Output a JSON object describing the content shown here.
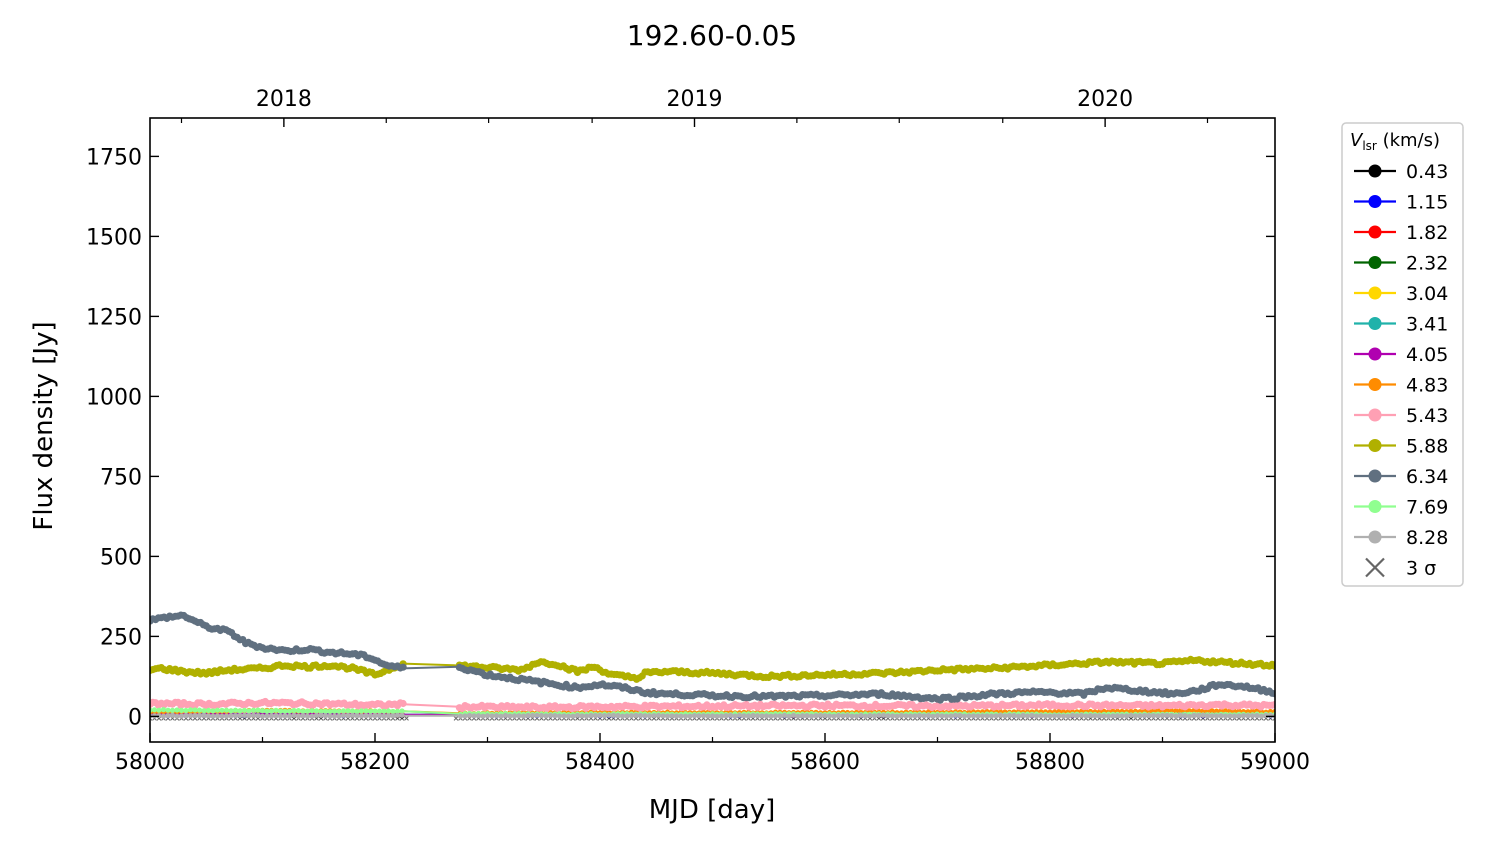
{
  "chart_data": {
    "type": "line",
    "title": "192.60-0.05",
    "xlabel": "MJD [day]",
    "ylabel": "Flux density [Jy]",
    "xlim": [
      58000,
      59000
    ],
    "ylim": [
      -80,
      1870
    ],
    "x_ticks": [
      58000,
      58200,
      58400,
      58600,
      58800,
      59000
    ],
    "y_ticks": [
      0,
      250,
      500,
      750,
      1000,
      1250,
      1500,
      1750
    ],
    "top_axis": {
      "ticks": [
        {
          "label": "2018",
          "mjd": 58119
        },
        {
          "label": "2019",
          "mjd": 58484
        },
        {
          "label": "2020",
          "mjd": 58849
        }
      ]
    },
    "legend": {
      "title_main": "V",
      "title_sub": "lsr",
      "title_rest": " (km/s)",
      "placement": "outside-right-top",
      "sigma_label": "3 σ",
      "sigma_color": "#666666"
    },
    "series": [
      {
        "name": "0.43",
        "color": "#000000",
        "x": [
          58000,
          58225,
          58275,
          59000
        ],
        "y": [
          3,
          3,
          3,
          3
        ]
      },
      {
        "name": "1.15",
        "color": "#0000ff",
        "x": [
          58000,
          58225,
          58275,
          59000
        ],
        "y": [
          4,
          4,
          4,
          4
        ]
      },
      {
        "name": "1.82",
        "color": "#ff0000",
        "x": [
          58000,
          58225,
          58275,
          59000
        ],
        "y": [
          5,
          5,
          5,
          5
        ]
      },
      {
        "name": "2.32",
        "color": "#006400",
        "x": [
          58000,
          58225,
          58275,
          59000
        ],
        "y": [
          6,
          6,
          6,
          6
        ]
      },
      {
        "name": "3.04",
        "color": "#ffd700",
        "x": [
          58000,
          58225,
          58275,
          59000
        ],
        "y": [
          5,
          5,
          5,
          5
        ]
      },
      {
        "name": "3.41",
        "color": "#20b2aa",
        "x": [
          58000,
          58225,
          58275,
          59000
        ],
        "y": [
          6,
          6,
          6,
          6
        ]
      },
      {
        "name": "4.05",
        "color": "#b000b0",
        "x": [
          58000,
          58225,
          58275,
          59000
        ],
        "y": [
          5,
          5,
          5,
          5
        ]
      },
      {
        "name": "4.83",
        "color": "#ff8c00",
        "x": [
          58000,
          58100,
          58225,
          58275,
          58400,
          58600,
          58800,
          58950,
          59000
        ],
        "y": [
          15,
          18,
          16,
          10,
          12,
          12,
          14,
          18,
          14
        ]
      },
      {
        "name": "5.43",
        "color": "#ffa0b4",
        "x": [
          58000,
          58050,
          58100,
          58150,
          58200,
          58225,
          58275,
          58350,
          58400,
          58500,
          58600,
          58700,
          58800,
          58900,
          58950,
          59000
        ],
        "y": [
          40,
          38,
          42,
          40,
          35,
          38,
          30,
          28,
          30,
          32,
          34,
          32,
          35,
          33,
          36,
          33
        ]
      },
      {
        "name": "5.88",
        "color": "#b0b000",
        "x": [
          58000,
          58010,
          58030,
          58050,
          58070,
          58100,
          58120,
          58140,
          58160,
          58180,
          58200,
          58225,
          58270,
          58290,
          58310,
          58330,
          58345,
          58360,
          58380,
          58395,
          58410,
          58420,
          58435,
          58440,
          58460,
          58500,
          58550,
          58600,
          58650,
          58680,
          58700,
          58750,
          58800,
          58850,
          58900,
          58930,
          58950,
          59000
        ],
        "y": [
          145,
          150,
          140,
          135,
          145,
          150,
          160,
          155,
          160,
          150,
          130,
          165,
          160,
          155,
          150,
          145,
          170,
          165,
          140,
          155,
          130,
          125,
          120,
          135,
          140,
          135,
          125,
          130,
          135,
          140,
          145,
          150,
          160,
          170,
          165,
          175,
          170,
          160
        ]
      },
      {
        "name": "6.34",
        "color": "#607080",
        "x": [
          58000,
          58015,
          58030,
          58050,
          58070,
          58085,
          58100,
          58120,
          58140,
          58160,
          58180,
          58195,
          58210,
          58225,
          58275,
          58300,
          58320,
          58340,
          58360,
          58380,
          58400,
          58420,
          58440,
          58460,
          58480,
          58500,
          58550,
          58600,
          58650,
          58700,
          58720,
          58750,
          58780,
          58800,
          58830,
          58850,
          58880,
          58910,
          58930,
          58950,
          58970,
          59000
        ],
        "y": [
          300,
          310,
          315,
          280,
          265,
          230,
          215,
          205,
          210,
          200,
          195,
          185,
          160,
          150,
          155,
          130,
          120,
          110,
          100,
          90,
          100,
          90,
          75,
          70,
          68,
          65,
          62,
          65,
          70,
          55,
          60,
          70,
          75,
          75,
          70,
          90,
          80,
          70,
          80,
          100,
          95,
          75
        ]
      },
      {
        "name": "7.69",
        "color": "#90ff90",
        "x": [
          58000,
          58100,
          58200,
          58225,
          58275,
          58400,
          58600,
          58800,
          59000
        ],
        "y": [
          20,
          18,
          16,
          16,
          8,
          7,
          7,
          6,
          6
        ]
      },
      {
        "name": "8.28",
        "color": "#b0b0b0",
        "x": [
          58000,
          58225,
          58275,
          59000
        ],
        "y": [
          2,
          2,
          2,
          2
        ]
      }
    ]
  }
}
